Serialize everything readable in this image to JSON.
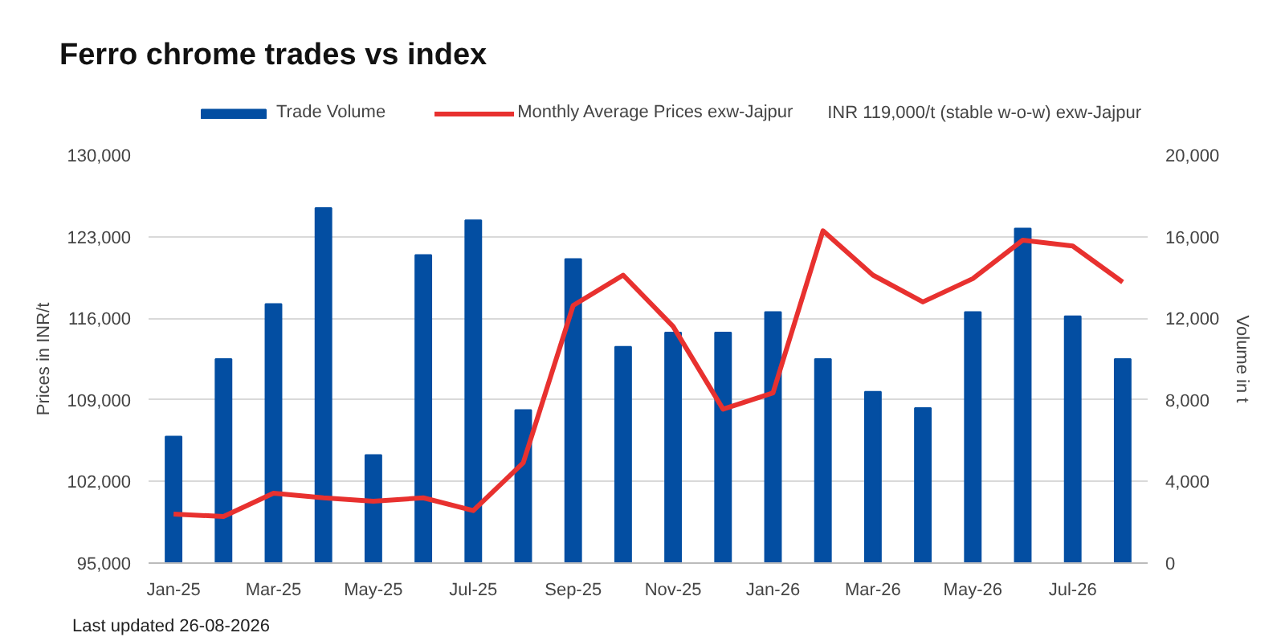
{
  "chart_data": {
    "type": "bar",
    "title": "Ferro chrome trades vs index",
    "categories": [
      "Jan-25",
      null,
      "Mar-25",
      null,
      "May-25",
      null,
      "Jul-25",
      null,
      "Sep-25",
      null,
      "Nov-25",
      null,
      "Jan-26",
      null,
      "Mar-26",
      null,
      "May-26",
      null,
      "Jul-26",
      null
    ],
    "series": [
      {
        "name": "Trade Volume",
        "axis": "y2",
        "color": "#034ea2",
        "values": [
          6200,
          10000,
          12700,
          17400,
          5300,
          15100,
          16800,
          7500,
          14900,
          10600,
          11300,
          11300,
          12300,
          10000,
          8400,
          7600,
          12300,
          16400,
          12100,
          10000
        ]
      },
      {
        "name": "Monthly Average Prices exw-Jajpur",
        "type": "line",
        "color": "#e8312f",
        "values": [
          99200,
          99000,
          101000,
          100600,
          100300,
          100600,
          99500,
          103600,
          117100,
          119700,
          115300,
          108200,
          109600,
          123500,
          119700,
          117400,
          119400,
          122700,
          122200,
          119100
        ]
      }
    ],
    "ylabel": "Prices in INR/t",
    "y2label": "Volume in t",
    "ylim": [
      95000,
      130000
    ],
    "yticks": [
      {
        "value": 95000,
        "label": "95,000"
      },
      {
        "value": 102000,
        "label": "102,000"
      },
      {
        "value": 109000,
        "label": "109,000"
      },
      {
        "value": 116000,
        "label": "116,000"
      },
      {
        "value": 123000,
        "label": "123,000"
      },
      {
        "value": 130000,
        "label": "130,000"
      }
    ],
    "y2lim": [
      0,
      20000
    ],
    "y2ticks": [
      0,
      {
        "value": 4000,
        "label": "4,000"
      },
      {
        "value": 8000,
        "label": "8,000"
      },
      {
        "value": 12000,
        "label": "12,000"
      },
      {
        "value": 16000,
        "label": "16,000"
      },
      {
        "value": 20000,
        "label": "20,000"
      }
    ],
    "annotations": [
      "INR 119,000/t (stable w-o-w) exw-Jajpur",
      "Last updated 26-08-2026"
    ],
    "grid": "y",
    "legend": "top left"
  }
}
